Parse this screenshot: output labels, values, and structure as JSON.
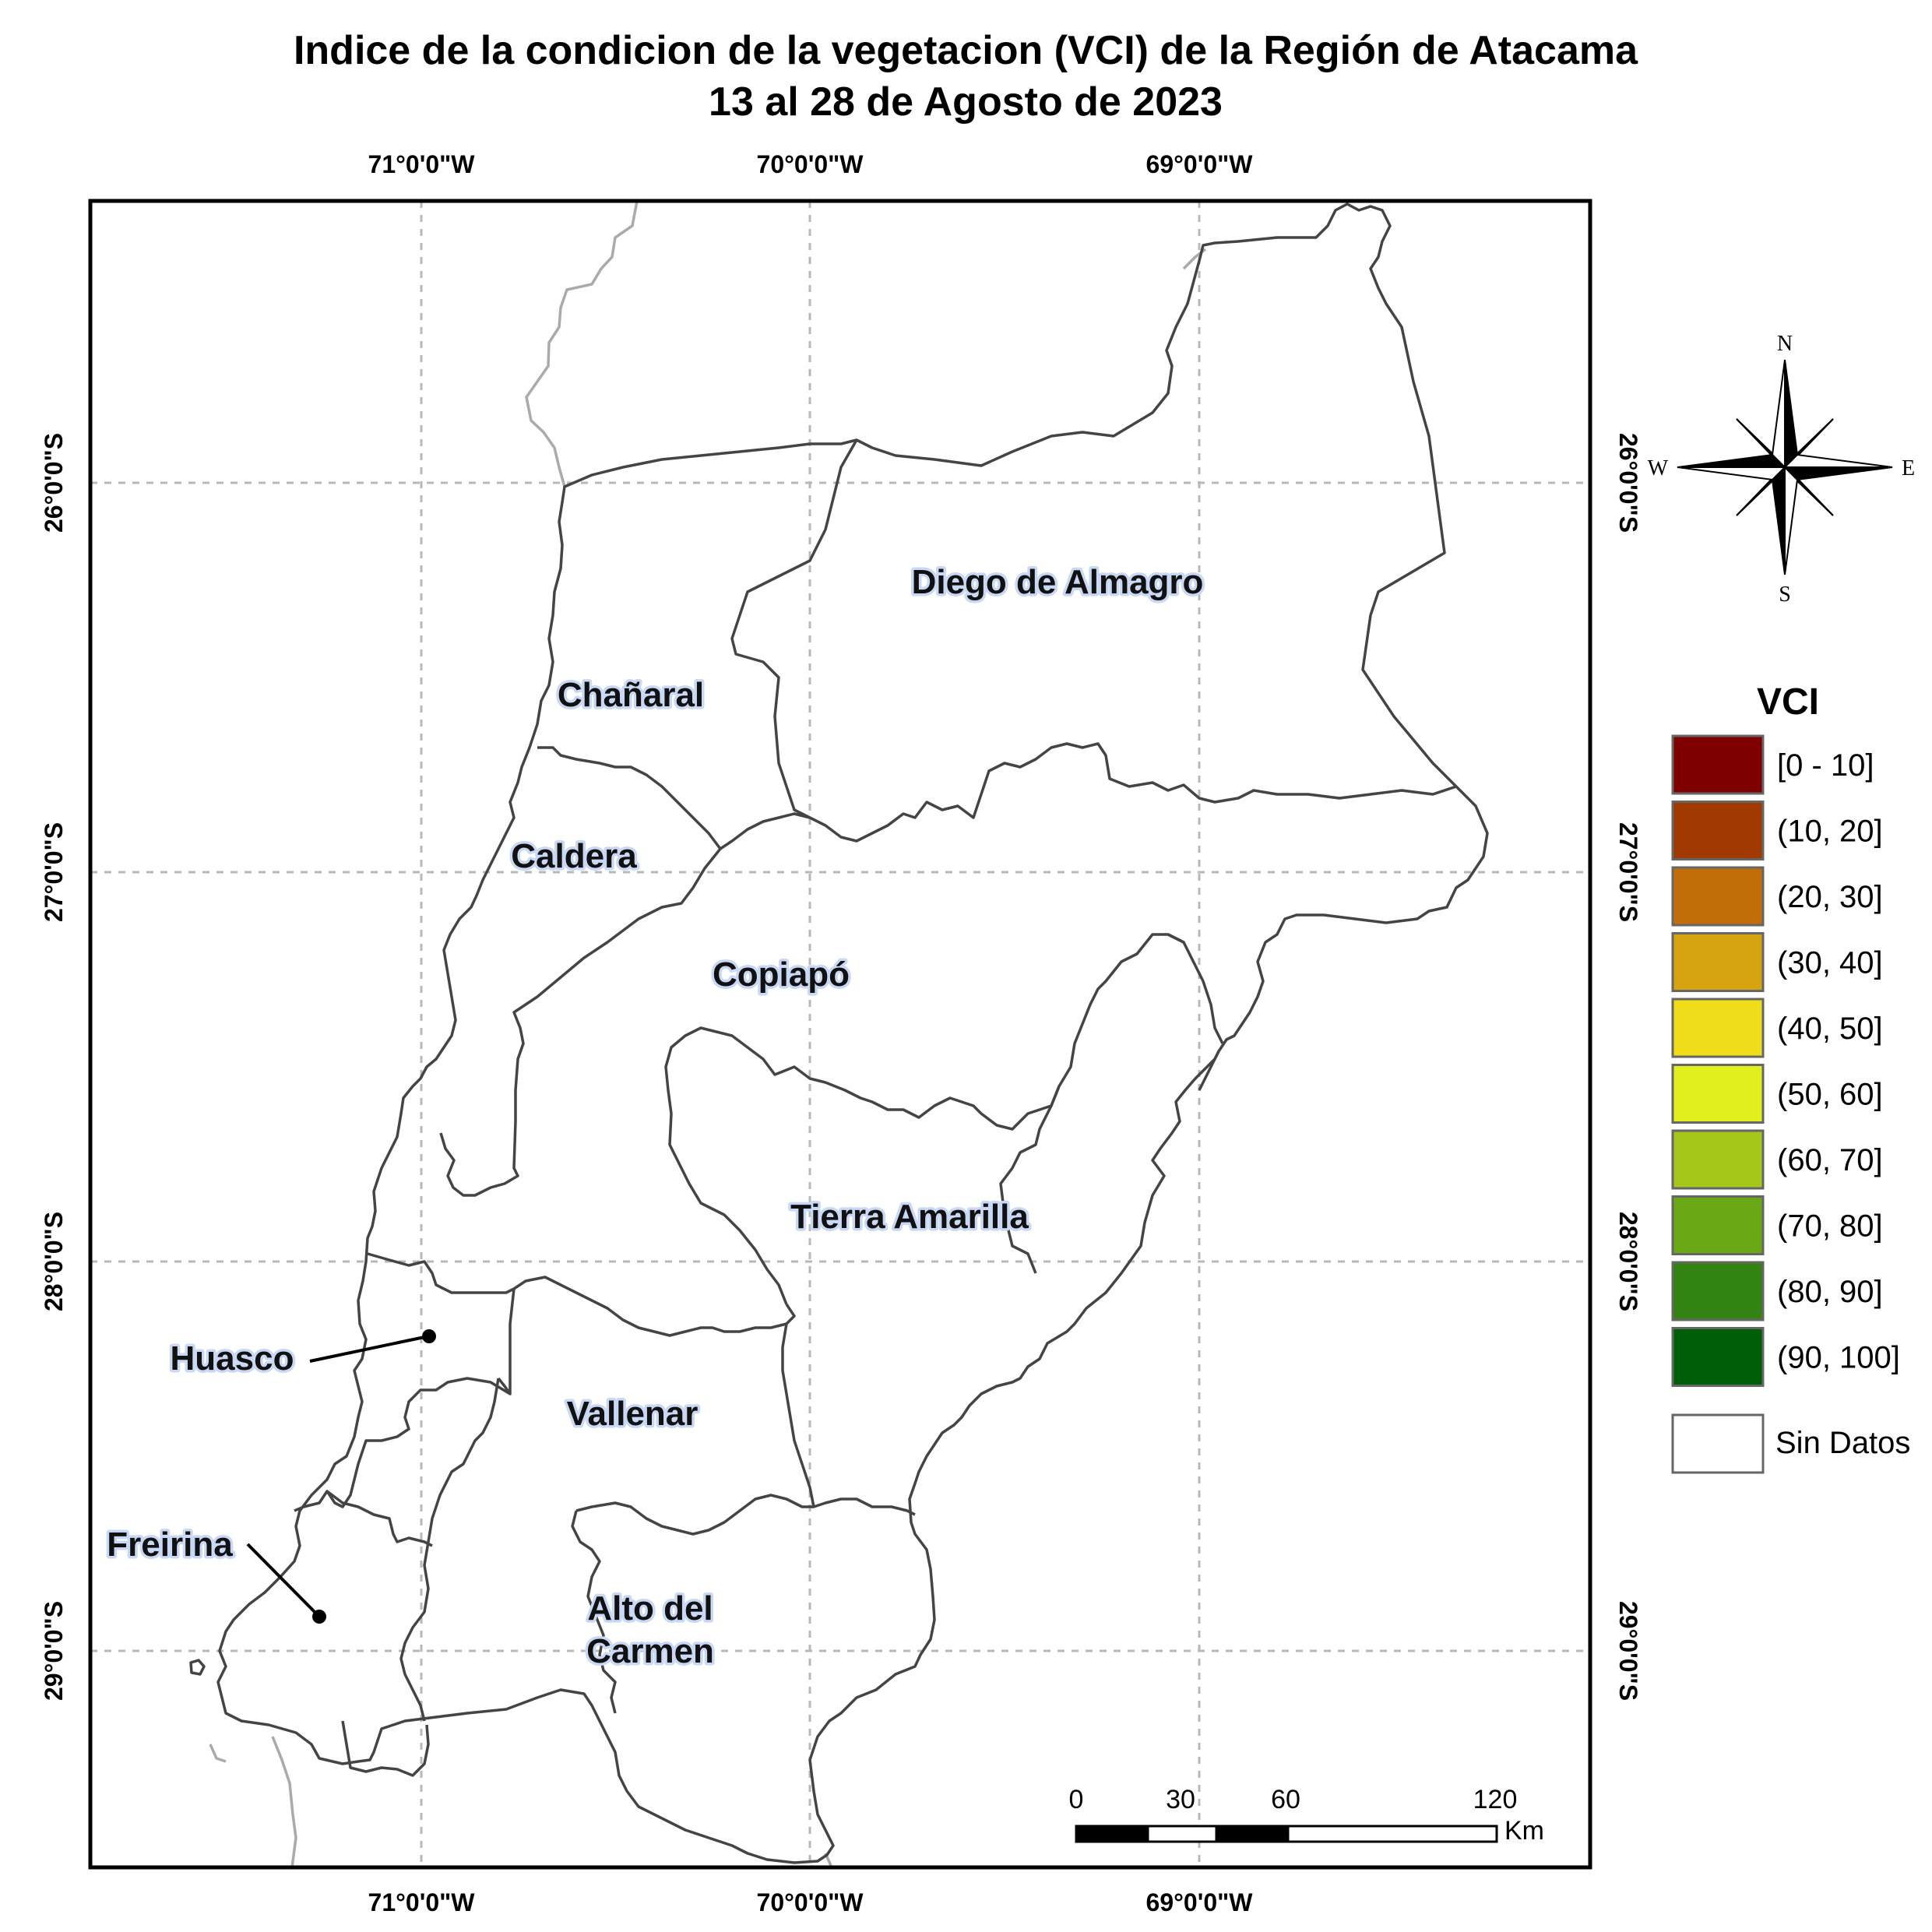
{
  "title": {
    "line1": "Indice de la condicion de la vegetacion (VCI) de la Región de Atacama",
    "line2": "13 al 28 de Agosto de 2023"
  },
  "grid": {
    "longitudes": [
      "71°0'0\"W",
      "70°0'0\"W",
      "69°0'0\"W"
    ],
    "latitudes": [
      "26°0'0\"S",
      "27°0'0\"S",
      "28°0'0\"S",
      "29°0'0\"S"
    ]
  },
  "map": {
    "comunas": [
      {
        "id": "diego-de-almagro",
        "label": "Diego de Almagro"
      },
      {
        "id": "chanaral",
        "label": "Chañaral"
      },
      {
        "id": "caldera",
        "label": "Caldera"
      },
      {
        "id": "copiapo",
        "label": "Copiapó"
      },
      {
        "id": "tierra-amarilla",
        "label": "Tierra Amarilla"
      },
      {
        "id": "huasco",
        "label": "Huasco"
      },
      {
        "id": "vallenar",
        "label": "Vallenar"
      },
      {
        "id": "freirina",
        "label": "Freirina"
      },
      {
        "id": "alto-del-carmen-1",
        "label": "Alto del"
      },
      {
        "id": "alto-del-carmen-2",
        "label": "Carmen"
      }
    ]
  },
  "compass": {
    "n": "N",
    "s": "S",
    "e": "E",
    "w": "W"
  },
  "legend": {
    "title": "VCI",
    "classes": [
      {
        "label": "[0 - 10]",
        "color": "#7f0000"
      },
      {
        "label": "(10, 20]",
        "color": "#a13a00"
      },
      {
        "label": "(20, 30]",
        "color": "#c06d0a"
      },
      {
        "label": "(30, 40]",
        "color": "#d6a411"
      },
      {
        "label": "(40, 50]",
        "color": "#f0dd19"
      },
      {
        "label": "(50, 60]",
        "color": "#e0ef1d"
      },
      {
        "label": "(60, 70]",
        "color": "#a5c71a"
      },
      {
        "label": "(70, 80]",
        "color": "#6aa816"
      },
      {
        "label": "(80, 90]",
        "color": "#328311"
      },
      {
        "label": "(90, 100]",
        "color": "#005e08"
      }
    ],
    "no_data": {
      "label": "Sin Datos",
      "color": "#ffffff"
    }
  },
  "scale_bar": {
    "ticks": [
      "0",
      "30",
      "60",
      "120"
    ],
    "unit": "Km"
  }
}
